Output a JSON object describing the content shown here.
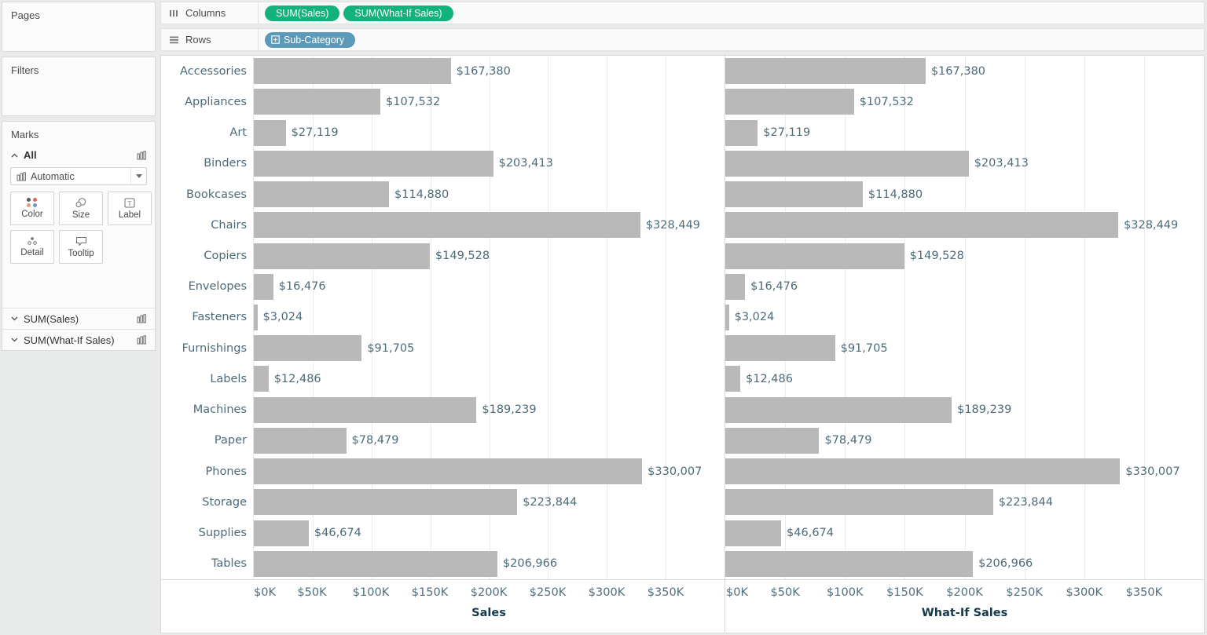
{
  "panels": {
    "pages_title": "Pages",
    "filters_title": "Filters",
    "marks": {
      "title": "Marks",
      "all_label": "All",
      "mark_type": "Automatic",
      "buttons": [
        "Color",
        "Size",
        "Label",
        "Detail",
        "Tooltip"
      ],
      "measure_cards": [
        "SUM(Sales)",
        "SUM(What-If Sales)"
      ]
    }
  },
  "shelves": {
    "columns_label": "Columns",
    "rows_label": "Rows",
    "columns_pills": [
      "SUM(Sales)",
      "SUM(What-If Sales)"
    ],
    "rows_pills": [
      "Sub-Category"
    ]
  },
  "colors": {
    "measure_pill": "#12b27d",
    "dimension_pill": "#5b9ab8",
    "bar": "#b9b9b9",
    "chart_text": "#4d6b7a",
    "axis_title_text": "#16394c"
  },
  "chart_data": {
    "type": "bar",
    "orientation": "horizontal",
    "categories": [
      "Accessories",
      "Appliances",
      "Art",
      "Binders",
      "Bookcases",
      "Chairs",
      "Copiers",
      "Envelopes",
      "Fasteners",
      "Furnishings",
      "Labels",
      "Machines",
      "Paper",
      "Phones",
      "Storage",
      "Supplies",
      "Tables"
    ],
    "series": [
      {
        "name": "Sales",
        "values": [
          167380,
          107532,
          27119,
          203413,
          114880,
          328449,
          149528,
          16476,
          3024,
          91705,
          12486,
          189239,
          78479,
          330007,
          223844,
          46674,
          206966
        ]
      },
      {
        "name": "What-If Sales",
        "values": [
          167380,
          107532,
          27119,
          203413,
          114880,
          328449,
          149528,
          16476,
          3024,
          91705,
          12486,
          189239,
          78479,
          330007,
          223844,
          46674,
          206966
        ]
      }
    ],
    "value_labels": [
      "$167,380",
      "$107,532",
      "$27,119",
      "$203,413",
      "$114,880",
      "$328,449",
      "$149,528",
      "$16,476",
      "$3,024",
      "$91,705",
      "$12,486",
      "$189,239",
      "$78,479",
      "$330,007",
      "$223,844",
      "$46,674",
      "$206,966"
    ],
    "axis": {
      "max": 400000,
      "tick_values": [
        0,
        50000,
        100000,
        150000,
        200000,
        250000,
        300000,
        350000
      ],
      "tick_labels": [
        "$0K",
        "$50K",
        "$100K",
        "$150K",
        "$200K",
        "$250K",
        "$300K",
        "$350K"
      ],
      "titles": [
        "Sales",
        "What-If Sales"
      ],
      "grid": true,
      "legend": "none"
    }
  }
}
